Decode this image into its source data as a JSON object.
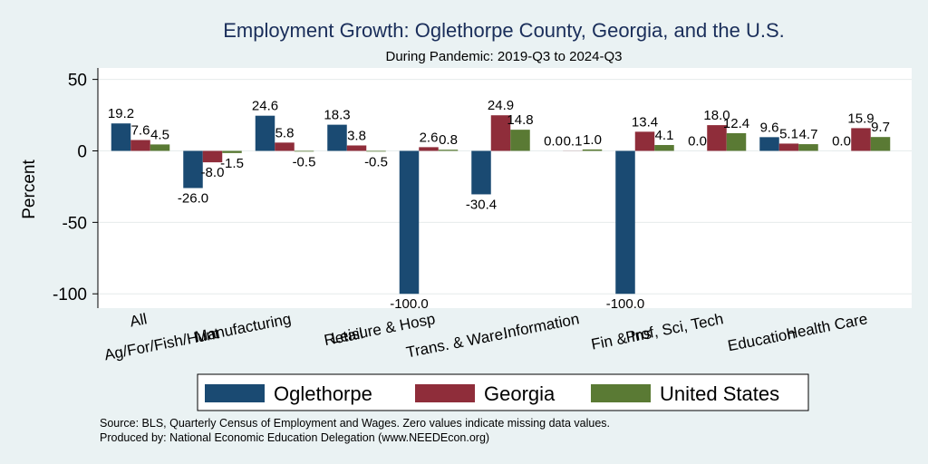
{
  "colors": {
    "background": "#eaf2f3",
    "plot_background": "#ffffff",
    "title": "#1a2e5a",
    "grid": "#e6ecec"
  },
  "chart_data": {
    "type": "bar",
    "title": "Employment Growth: Oglethorpe County, Georgia, and the U.S.",
    "subtitle": "During Pandemic: 2019-Q3 to 2024-Q3",
    "ylabel": "Percent",
    "xlabel": "",
    "ylim": [
      -110,
      58
    ],
    "yticks": [
      50,
      0,
      -50,
      -100
    ],
    "grid": true,
    "legend_position": "bottom",
    "categories": [
      "All",
      "Ag/For/Fish/Hunt",
      "Manufacturing",
      "Retail",
      "Leisure & Hosp",
      "Trans. & Ware.",
      "Information",
      "Fin & Ins",
      "Prof, Sci, Tech",
      "Education",
      "Health Care"
    ],
    "series": [
      {
        "name": "Oglethorpe",
        "color": "#1a4a72",
        "values": [
          19.2,
          -26.0,
          24.6,
          18.3,
          -100.0,
          -30.4,
          0.0,
          -100.0,
          0.0,
          9.6,
          0.0
        ]
      },
      {
        "name": "Georgia",
        "color": "#8f2d3a",
        "values": [
          7.6,
          -8.0,
          5.8,
          3.8,
          2.6,
          24.9,
          0.1,
          13.4,
          18.0,
          5.1,
          15.9
        ]
      },
      {
        "name": "United States",
        "color": "#5a7a34",
        "values": [
          4.5,
          -1.5,
          -0.5,
          -0.5,
          0.8,
          14.8,
          1.0,
          4.1,
          12.4,
          4.7,
          9.7
        ]
      }
    ],
    "notes": [
      "Source: BLS, Quarterly Census of Employment and Wages. Zero values indicate missing data values.",
      "Produced by: National Economic Education Delegation (www.NEEDEcon.org)"
    ]
  }
}
